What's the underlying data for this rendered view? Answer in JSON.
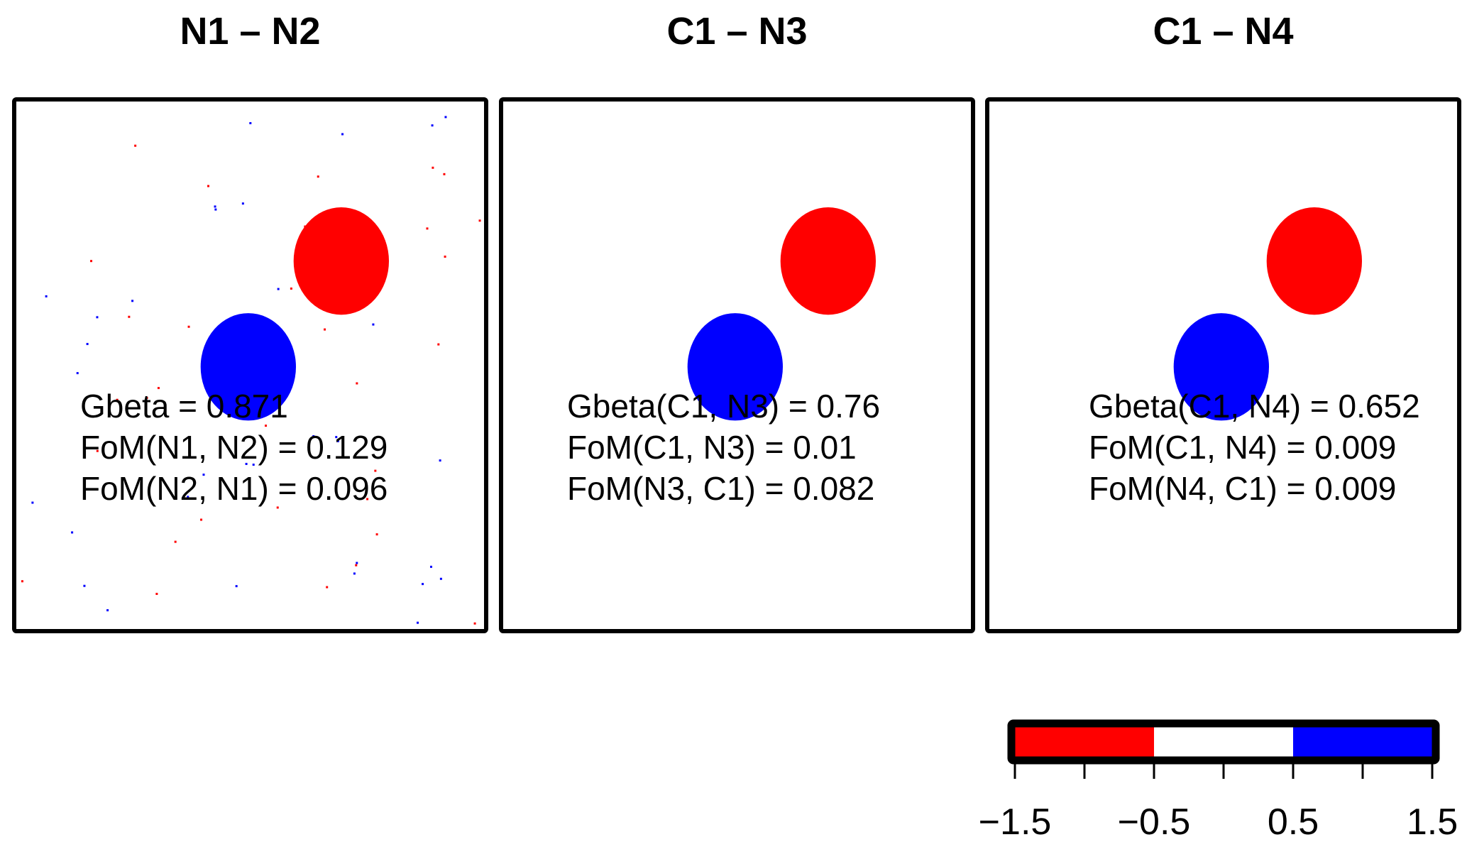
{
  "chart_data": {
    "type": "heatmap",
    "panels": [
      {
        "title": "N1 – N2",
        "stats": [
          "Gbeta = 0.871",
          "FoM(N1, N2) = 0.129",
          "FoM(N2, N1) = 0.096"
        ],
        "noise": true
      },
      {
        "title": "C1 – N3",
        "stats": [
          "Gbeta(C1, N3) = 0.76",
          "FoM(C1, N3) = 0.01",
          "FoM(N3, C1) = 0.082"
        ],
        "noise": false
      },
      {
        "title": "C1 – N4",
        "stats": [
          "Gbeta(C1, N4) = 0.652",
          "FoM(C1, N4) = 0.009",
          "FoM(N4, C1) = 0.009"
        ],
        "noise": false
      }
    ],
    "colorbar": {
      "range": [
        -1.5,
        1.5
      ],
      "breaks": [
        -1.5,
        -0.5,
        0.5,
        1.5
      ],
      "colors": [
        "#ff0000",
        "#ffffff",
        "#0000ff"
      ],
      "tick_values": [
        -1.5,
        -1.0,
        -0.5,
        0.0,
        0.5,
        1.0,
        1.5
      ],
      "tick_labels": [
        "−1.5",
        "−0.5",
        "0.5",
        "1.5"
      ]
    }
  }
}
